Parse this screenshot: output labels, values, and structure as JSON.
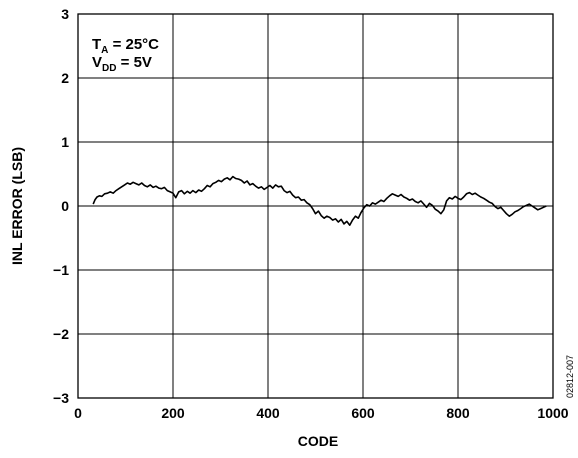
{
  "chart_data": {
    "type": "line",
    "title": "",
    "xlabel": "CODE",
    "ylabel": "INL ERROR (LSB)",
    "xlim": [
      0,
      1000
    ],
    "ylim": [
      -3,
      3
    ],
    "x_ticks": [
      0,
      200,
      400,
      600,
      800,
      1000
    ],
    "y_ticks": [
      3,
      2,
      1,
      0,
      -1,
      -2,
      -3
    ],
    "x_tick_labels": [
      "0",
      "200",
      "400",
      "600",
      "800",
      "1000"
    ],
    "y_tick_labels": [
      "3",
      "2",
      "1",
      "0",
      "−1",
      "−2",
      "−3"
    ],
    "grid": true,
    "legend": "none",
    "annotation": {
      "ta_main": "T",
      "ta_sub": "A",
      "ta_rest": " = 25°C",
      "vdd_main": "V",
      "vdd_sub": "DD",
      "vdd_rest": " = 5V"
    },
    "figure_id": "02812-007",
    "series": [
      {
        "color": "#000000",
        "x": [
          32,
          36,
          40,
          45,
          50,
          56,
          62,
          68,
          74,
          80,
          86,
          92,
          98,
          104,
          110,
          116,
          122,
          128,
          134,
          140,
          146,
          152,
          158,
          164,
          170,
          176,
          182,
          188,
          194,
          200,
          206,
          212,
          218,
          224,
          230,
          236,
          242,
          248,
          254,
          260,
          266,
          272,
          278,
          284,
          290,
          296,
          302,
          308,
          314,
          320,
          326,
          332,
          338,
          344,
          350,
          356,
          362,
          368,
          374,
          380,
          386,
          392,
          398,
          404,
          410,
          416,
          422,
          428,
          434,
          440,
          446,
          452,
          458,
          464,
          470,
          476,
          482,
          488,
          494,
          500,
          506,
          512,
          518,
          524,
          530,
          536,
          542,
          548,
          554,
          560,
          566,
          572,
          578,
          584,
          590,
          596,
          602,
          608,
          614,
          620,
          626,
          632,
          638,
          644,
          650,
          656,
          662,
          668,
          674,
          680,
          686,
          692,
          698,
          704,
          710,
          716,
          722,
          728,
          734,
          740,
          746,
          752,
          758,
          764,
          770,
          776,
          782,
          788,
          794,
          800,
          806,
          812,
          818,
          824,
          830,
          836,
          842,
          848,
          854,
          860,
          866,
          872,
          878,
          884,
          890,
          896,
          902,
          908,
          914,
          920,
          926,
          932,
          938,
          944,
          950,
          956,
          962,
          968,
          974,
          980,
          986
        ],
        "y": [
          0.03,
          0.1,
          0.14,
          0.16,
          0.15,
          0.19,
          0.2,
          0.22,
          0.2,
          0.24,
          0.27,
          0.3,
          0.33,
          0.36,
          0.34,
          0.37,
          0.35,
          0.33,
          0.36,
          0.32,
          0.3,
          0.33,
          0.29,
          0.31,
          0.28,
          0.27,
          0.29,
          0.24,
          0.22,
          0.2,
          0.13,
          0.22,
          0.24,
          0.19,
          0.23,
          0.2,
          0.24,
          0.21,
          0.25,
          0.23,
          0.27,
          0.32,
          0.3,
          0.35,
          0.37,
          0.4,
          0.38,
          0.42,
          0.44,
          0.41,
          0.46,
          0.43,
          0.42,
          0.4,
          0.36,
          0.39,
          0.33,
          0.35,
          0.31,
          0.28,
          0.3,
          0.26,
          0.29,
          0.32,
          0.28,
          0.33,
          0.3,
          0.31,
          0.24,
          0.21,
          0.23,
          0.17,
          0.13,
          0.14,
          0.09,
          0.1,
          0.05,
          0.02,
          -0.04,
          -0.12,
          -0.08,
          -0.15,
          -0.19,
          -0.16,
          -0.18,
          -0.22,
          -0.2,
          -0.25,
          -0.21,
          -0.28,
          -0.24,
          -0.3,
          -0.22,
          -0.16,
          -0.19,
          -0.1,
          -0.03,
          0.02,
          0.0,
          0.05,
          0.03,
          0.06,
          0.09,
          0.07,
          0.12,
          0.16,
          0.19,
          0.17,
          0.15,
          0.18,
          0.14,
          0.12,
          0.09,
          0.11,
          0.07,
          0.05,
          0.08,
          0.03,
          -0.02,
          0.04,
          0.01,
          -0.05,
          -0.08,
          -0.12,
          -0.06,
          0.08,
          0.13,
          0.11,
          0.15,
          0.12,
          0.1,
          0.14,
          0.19,
          0.21,
          0.18,
          0.2,
          0.17,
          0.14,
          0.12,
          0.09,
          0.06,
          0.04,
          -0.01,
          -0.04,
          -0.02,
          -0.07,
          -0.12,
          -0.16,
          -0.13,
          -0.09,
          -0.07,
          -0.04,
          -0.01,
          0.01,
          0.03,
          0.0,
          -0.03,
          -0.06,
          -0.04,
          -0.02,
          0.0
        ]
      }
    ]
  }
}
